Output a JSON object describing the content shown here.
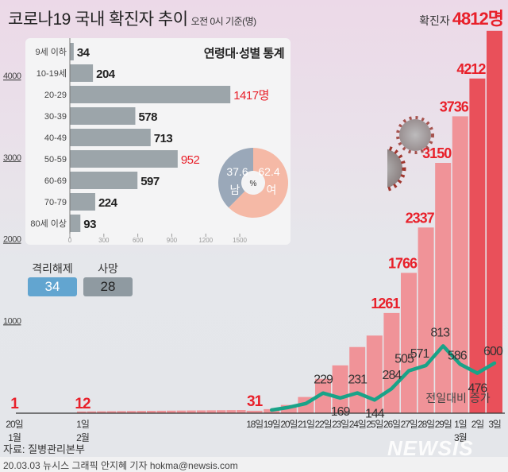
{
  "header": {
    "title": "코로나19 국내 확진자 추이",
    "subtitle": "오전 0시 기준(명)",
    "total_label": "확진자",
    "total_value": "4812명"
  },
  "colors": {
    "bar": "#f09398",
    "bar_recent": "#e9505a",
    "line": "#19a388",
    "label_red": "#e8202a",
    "inset_bar": "#9ca5aa",
    "male": "#9aa8b9",
    "female": "#f5b9a6",
    "released": "#62a5d0",
    "deaths": "#8f9aa1"
  },
  "legend": {
    "released_label": "격리해제",
    "released_value": "34",
    "deaths_label": "사망",
    "deaths_value": "28"
  },
  "chart_data": [
    {
      "type": "bar",
      "title": "코로나19 국내 확진자 추이",
      "subtitle": "오전 0시 기준(명)",
      "yticks": [
        "1000",
        "2000",
        "3000",
        "4000"
      ],
      "ylim": [
        0,
        5000
      ],
      "early_points": [
        {
          "x_label": "20일",
          "month": "1월",
          "value": 1,
          "label": "1"
        },
        {
          "x_label": "1일",
          "month": "2월",
          "value": 12,
          "label": "12"
        }
      ],
      "categories": [
        "18일",
        "19일",
        "20일",
        "21일",
        "22일",
        "23일",
        "24일",
        "25일",
        "26일",
        "27일",
        "28일",
        "29일",
        "1일",
        "2일",
        "3일"
      ],
      "month_under": {
        "1일": "3월"
      },
      "series": [
        {
          "name": "확진자",
          "values": [
            31,
            51,
            104,
            204,
            433,
            602,
            833,
            977,
            1261,
            1766,
            2337,
            3150,
            3736,
            4212,
            4812
          ],
          "labels": [
            "31",
            "",
            "",
            "",
            "",
            "",
            "",
            "",
            "1261",
            "1766",
            "2337",
            "3150",
            "3736",
            "4212",
            ""
          ]
        }
      ],
      "line": {
        "name": "전일대비 증가",
        "start_index": 1,
        "values": [
          20,
          53,
          100,
          229,
          169,
          231,
          144,
          284,
          505,
          571,
          813,
          586,
          476,
          600
        ],
        "labels": [
          "",
          "",
          "",
          "229",
          "169",
          "231",
          "144",
          "284",
          "505",
          "571",
          "813",
          "586",
          "476",
          "600"
        ]
      }
    },
    {
      "type": "bar",
      "title": "연령대·성별 통계",
      "orientation": "horizontal",
      "categories": [
        "9세 이하",
        "10-19세",
        "20-29",
        "30-39",
        "40-49",
        "50-59",
        "60-69",
        "70-79",
        "80세 이상"
      ],
      "values": [
        34,
        204,
        1417,
        578,
        713,
        952,
        597,
        224,
        93
      ],
      "labels": [
        "34",
        "204",
        "1417명",
        "578",
        "713",
        "952",
        "597",
        "224",
        "93"
      ],
      "highlight": [
        2,
        5
      ],
      "xticks": [
        "0",
        "300",
        "600",
        "900",
        "1200",
        "1500"
      ],
      "xlim": [
        0,
        1500
      ]
    },
    {
      "type": "pie",
      "center_label": "%",
      "slices": [
        {
          "name": "남",
          "value": 37.6,
          "label": "37.6"
        },
        {
          "name": "여",
          "value": 62.4,
          "label": "62.4"
        }
      ]
    }
  ],
  "footer": {
    "source": "자료: 질병관리본부",
    "credit": "20.03.03 뉴시스 그래픽 안지혜 기자 hokma@newsis.com",
    "logo": "NEWSIS"
  }
}
